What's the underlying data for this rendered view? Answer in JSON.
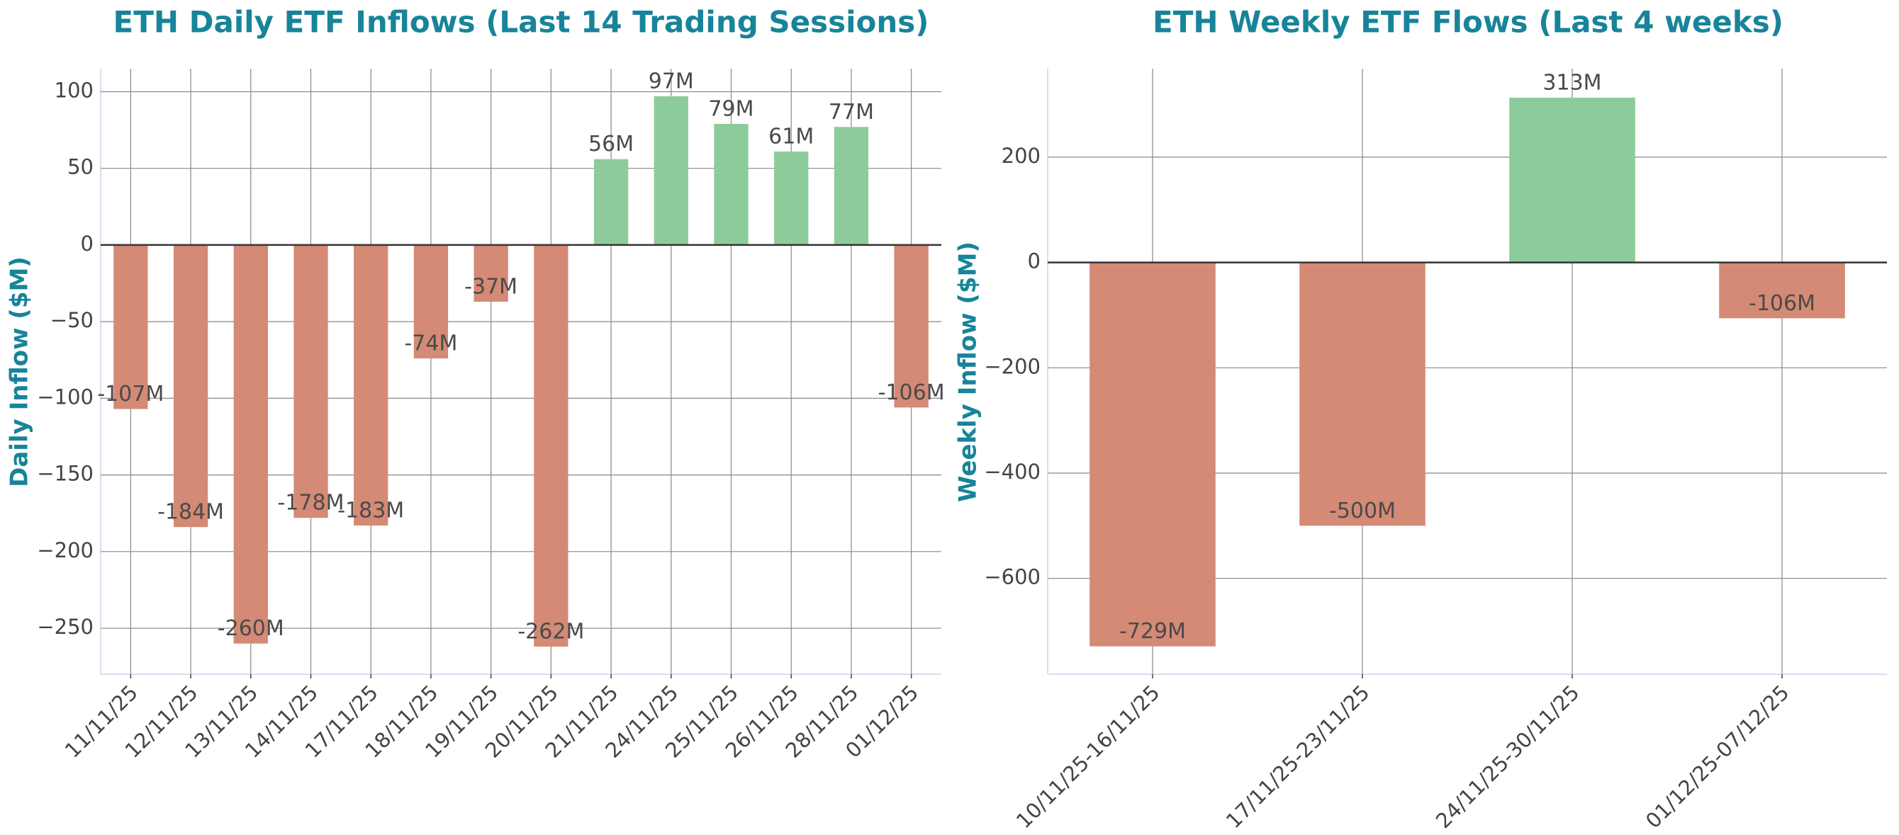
{
  "chart_data": [
    {
      "type": "bar",
      "title": "ETH Daily ETF Inflows (Last 14 Trading Sessions)",
      "y_label": "Daily Inflow ($M)",
      "categories": [
        "11/11/25",
        "12/11/25",
        "13/11/25",
        "14/11/25",
        "17/11/25",
        "18/11/25",
        "19/11/25",
        "20/11/25",
        "21/11/25",
        "24/11/25",
        "25/11/25",
        "26/11/25",
        "28/11/25",
        "01/12/25"
      ],
      "values": [
        -107,
        -184,
        -260,
        -178,
        -183,
        -74,
        -37,
        -262,
        56,
        97,
        79,
        61,
        77,
        -106
      ],
      "value_labels": [
        "-107M",
        "-184M",
        "-260M",
        "-178M",
        "-183M",
        "-74M",
        "-37M",
        "-262M",
        "56M",
        "97M",
        "79M",
        "61M",
        "77M",
        "-106M"
      ],
      "color_positive": "#8ecb9b",
      "color_negative": "#d48a75",
      "ylim": [
        -280,
        115
      ],
      "yticks": [
        {
          "value": -250,
          "label": "−250"
        },
        {
          "value": -200,
          "label": "−200"
        },
        {
          "value": -150,
          "label": "−150"
        },
        {
          "value": -100,
          "label": "−100"
        },
        {
          "value": -50,
          "label": "−50"
        },
        0,
        50,
        100
      ],
      "grid": true
    },
    {
      "type": "bar",
      "title": "ETH Weekly ETF Flows (Last 4 weeks)",
      "y_label": "Weekly Inflow ($M)",
      "categories": [
        "10/11/25-16/11/25",
        "17/11/25-23/11/25",
        "24/11/25-30/11/25",
        "01/12/25-07/12/25"
      ],
      "values": [
        -729,
        -500,
        313,
        -106
      ],
      "value_labels": [
        "-729M",
        "-500M",
        "313M",
        "-106M"
      ],
      "color_positive": "#8ecb9b",
      "color_negative": "#d48a75",
      "ylim": [
        -782,
        368
      ],
      "yticks": [
        {
          "value": -600,
          "label": "−600"
        },
        {
          "value": -400,
          "label": "−400"
        },
        {
          "value": -200,
          "label": "−200"
        },
        0,
        200
      ],
      "grid": true
    }
  ]
}
